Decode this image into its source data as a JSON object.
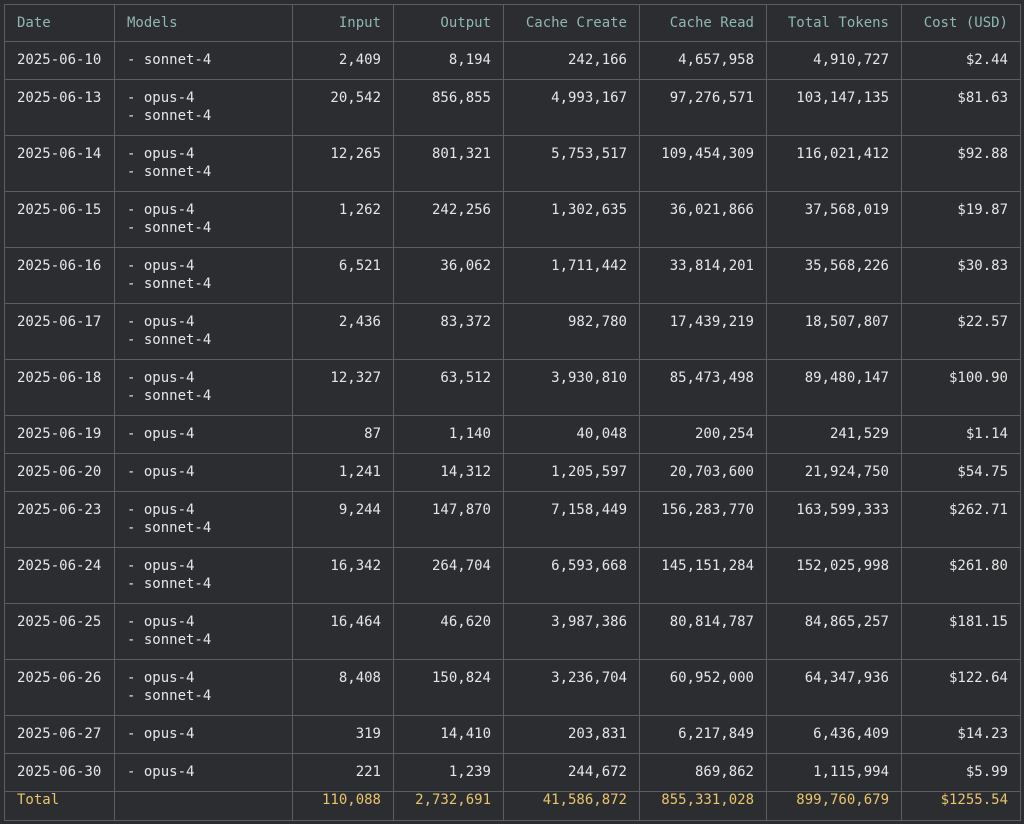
{
  "columns": [
    "Date",
    "Models",
    "Input",
    "Output",
    "Cache Create",
    "Cache Read",
    "Total Tokens",
    "Cost (USD)"
  ],
  "rows": [
    {
      "date": "2025-06-10",
      "models": [
        "- sonnet-4"
      ],
      "input": "2,409",
      "output": "8,194",
      "cache_create": "242,166",
      "cache_read": "4,657,958",
      "total_tokens": "4,910,727",
      "cost": "$2.44"
    },
    {
      "date": "2025-06-13",
      "models": [
        "- opus-4",
        "- sonnet-4"
      ],
      "input": "20,542",
      "output": "856,855",
      "cache_create": "4,993,167",
      "cache_read": "97,276,571",
      "total_tokens": "103,147,135",
      "cost": "$81.63"
    },
    {
      "date": "2025-06-14",
      "models": [
        "- opus-4",
        "- sonnet-4"
      ],
      "input": "12,265",
      "output": "801,321",
      "cache_create": "5,753,517",
      "cache_read": "109,454,309",
      "total_tokens": "116,021,412",
      "cost": "$92.88"
    },
    {
      "date": "2025-06-15",
      "models": [
        "- opus-4",
        "- sonnet-4"
      ],
      "input": "1,262",
      "output": "242,256",
      "cache_create": "1,302,635",
      "cache_read": "36,021,866",
      "total_tokens": "37,568,019",
      "cost": "$19.87"
    },
    {
      "date": "2025-06-16",
      "models": [
        "- opus-4",
        "- sonnet-4"
      ],
      "input": "6,521",
      "output": "36,062",
      "cache_create": "1,711,442",
      "cache_read": "33,814,201",
      "total_tokens": "35,568,226",
      "cost": "$30.83"
    },
    {
      "date": "2025-06-17",
      "models": [
        "- opus-4",
        "- sonnet-4"
      ],
      "input": "2,436",
      "output": "83,372",
      "cache_create": "982,780",
      "cache_read": "17,439,219",
      "total_tokens": "18,507,807",
      "cost": "$22.57"
    },
    {
      "date": "2025-06-18",
      "models": [
        "- opus-4",
        "- sonnet-4"
      ],
      "input": "12,327",
      "output": "63,512",
      "cache_create": "3,930,810",
      "cache_read": "85,473,498",
      "total_tokens": "89,480,147",
      "cost": "$100.90"
    },
    {
      "date": "2025-06-19",
      "models": [
        "- opus-4"
      ],
      "input": "87",
      "output": "1,140",
      "cache_create": "40,048",
      "cache_read": "200,254",
      "total_tokens": "241,529",
      "cost": "$1.14"
    },
    {
      "date": "2025-06-20",
      "models": [
        "- opus-4"
      ],
      "input": "1,241",
      "output": "14,312",
      "cache_create": "1,205,597",
      "cache_read": "20,703,600",
      "total_tokens": "21,924,750",
      "cost": "$54.75"
    },
    {
      "date": "2025-06-23",
      "models": [
        "- opus-4",
        "- sonnet-4"
      ],
      "input": "9,244",
      "output": "147,870",
      "cache_create": "7,158,449",
      "cache_read": "156,283,770",
      "total_tokens": "163,599,333",
      "cost": "$262.71"
    },
    {
      "date": "2025-06-24",
      "models": [
        "- opus-4",
        "- sonnet-4"
      ],
      "input": "16,342",
      "output": "264,704",
      "cache_create": "6,593,668",
      "cache_read": "145,151,284",
      "total_tokens": "152,025,998",
      "cost": "$261.80"
    },
    {
      "date": "2025-06-25",
      "models": [
        "- opus-4",
        "- sonnet-4"
      ],
      "input": "16,464",
      "output": "46,620",
      "cache_create": "3,987,386",
      "cache_read": "80,814,787",
      "total_tokens": "84,865,257",
      "cost": "$181.15"
    },
    {
      "date": "2025-06-26",
      "models": [
        "- opus-4",
        "- sonnet-4"
      ],
      "input": "8,408",
      "output": "150,824",
      "cache_create": "3,236,704",
      "cache_read": "60,952,000",
      "total_tokens": "64,347,936",
      "cost": "$122.64"
    },
    {
      "date": "2025-06-27",
      "models": [
        "- opus-4"
      ],
      "input": "319",
      "output": "14,410",
      "cache_create": "203,831",
      "cache_read": "6,217,849",
      "total_tokens": "6,436,409",
      "cost": "$14.23"
    },
    {
      "date": "2025-06-30",
      "models": [
        "- opus-4"
      ],
      "input": "221",
      "output": "1,239",
      "cache_create": "244,672",
      "cache_read": "869,862",
      "total_tokens": "1,115,994",
      "cost": "$5.99"
    }
  ],
  "total": {
    "label": "Total",
    "models": "",
    "input": "110,088",
    "output": "2,732,691",
    "cache_create": "41,586,872",
    "cache_read": "855,331,028",
    "total_tokens": "899,760,679",
    "cost": "$1255.54"
  },
  "colors": {
    "background": "#2b2d31",
    "header_text": "#8fb7b3",
    "total_text": "#e9c46a",
    "border": "#5b5e63",
    "body_text": "#e6e6e6"
  }
}
